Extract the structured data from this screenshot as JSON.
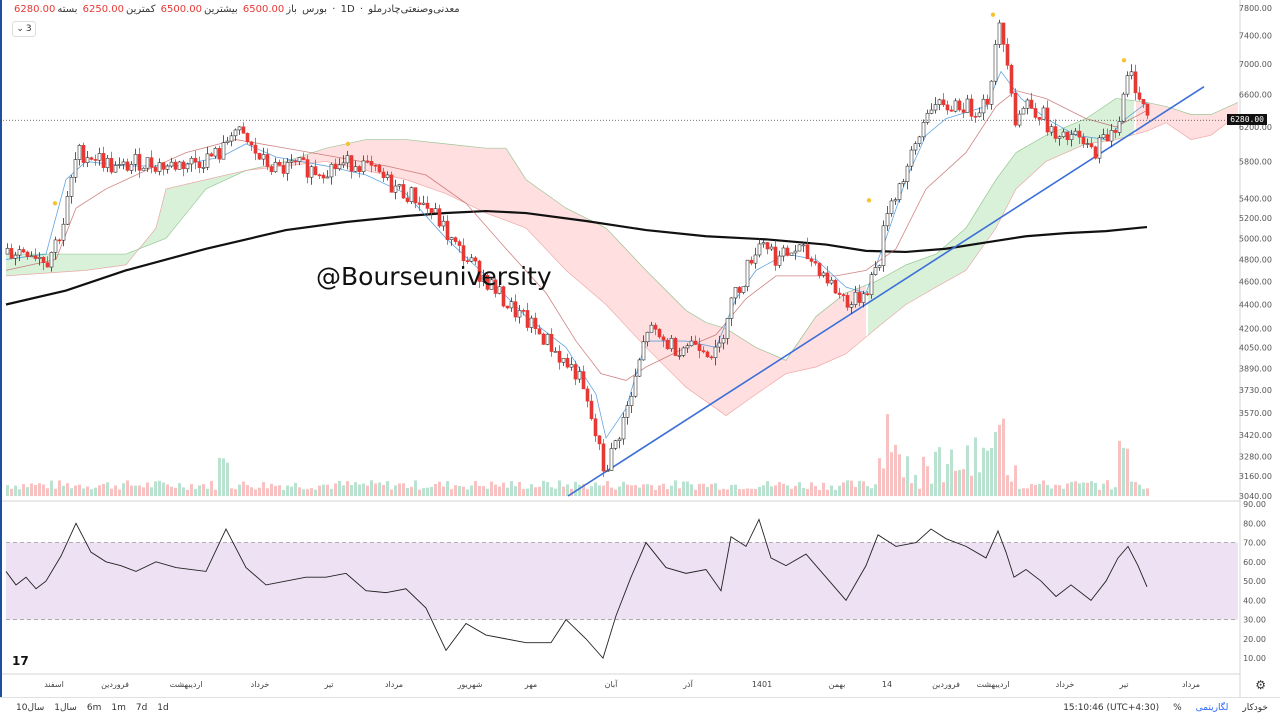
{
  "header": {
    "symbol": "معدنی‌وصنعتی‌چادرملو",
    "interval": "1D",
    "exchange": "بورس",
    "open_label": "باز",
    "open_value": "6500.00",
    "high_label": "بیشترین",
    "high_value": "6500.00",
    "low_label": "کمترین",
    "low_value": "6250.00",
    "close_label": "بسته",
    "close_value": "6280.00",
    "indicator_count": "3"
  },
  "watermark": "@Bourseuniversity",
  "current_price_tag": "6280.00",
  "bottom": {
    "ranges": [
      "10سال",
      "1سال",
      "6m",
      "1m",
      "7d",
      "1d"
    ],
    "time": "15:10:46 (UTC+4:30)",
    "percent": "%",
    "log": "لگاریتمی",
    "auto": "خودکار"
  },
  "colors": {
    "up": "#26a69a",
    "down": "#ef5350",
    "candle_down": "#e53935",
    "baseline": "#2962ff",
    "rsi_band": "#ede1f3"
  },
  "chart_data": [
    {
      "type": "candlestick",
      "title": "",
      "y_scale": "log",
      "ylim": [
        3040,
        7800
      ],
      "y_ticks": [
        7800,
        7400,
        7000,
        6600,
        6280,
        6200,
        5800,
        5400,
        5200,
        5000,
        4800,
        4600,
        4400,
        4200,
        4050,
        3890,
        3730,
        3570,
        3420,
        3280,
        3160,
        3040
      ],
      "y_tick_labels": [
        "7800.00",
        "7400.00",
        "7000.00",
        "6600.00",
        "6280.00",
        "6200.00",
        "5800.00",
        "5400.00",
        "5200.00",
        "5000.00",
        "4800.00",
        "4600.00",
        "4400.00",
        "4200.00",
        "4050.00",
        "3890.00",
        "3730.00",
        "3570.00",
        "3420.00",
        "3280.00",
        "3160.00",
        "3040.00"
      ],
      "x_labels": [
        "اسفند",
        "فروردین",
        "اردیبهشت",
        "خرداد",
        "تیر",
        "مرداد",
        "شهریور",
        "مهر",
        "آبان",
        "آذر",
        "1401",
        "بهمن",
        "14",
        "فروردین",
        "اردیبهشت",
        "خرداد",
        "تیر",
        "مرداد"
      ],
      "price_path": [
        [
          0,
          4850
        ],
        [
          18,
          4900
        ],
        [
          40,
          4800
        ],
        [
          55,
          5100
        ],
        [
          70,
          5900
        ],
        [
          90,
          5850
        ],
        [
          110,
          5700
        ],
        [
          130,
          5800
        ],
        [
          160,
          5750
        ],
        [
          190,
          5800
        ],
        [
          215,
          5900
        ],
        [
          225,
          6200
        ],
        [
          240,
          6000
        ],
        [
          255,
          5800
        ],
        [
          270,
          5700
        ],
        [
          290,
          5750
        ],
        [
          310,
          5700
        ],
        [
          330,
          5750
        ],
        [
          350,
          5800
        ],
        [
          370,
          5650
        ],
        [
          390,
          5500
        ],
        [
          410,
          5400
        ],
        [
          430,
          5200
        ],
        [
          445,
          4950
        ],
        [
          460,
          4800
        ],
        [
          480,
          4600
        ],
        [
          500,
          4400
        ],
        [
          520,
          4250
        ],
        [
          540,
          4100
        ],
        [
          555,
          3950
        ],
        [
          570,
          3850
        ],
        [
          585,
          3500
        ],
        [
          597,
          3180
        ],
        [
          610,
          3400
        ],
        [
          625,
          3700
        ],
        [
          640,
          4200
        ],
        [
          655,
          4100
        ],
        [
          670,
          4050
        ],
        [
          690,
          4100
        ],
        [
          710,
          3980
        ],
        [
          722,
          4400
        ],
        [
          735,
          4600
        ],
        [
          745,
          4850
        ],
        [
          755,
          5000
        ],
        [
          770,
          4800
        ],
        [
          790,
          4900
        ],
        [
          810,
          4750
        ],
        [
          830,
          4500
        ],
        [
          845,
          4400
        ],
        [
          860,
          4550
        ],
        [
          872,
          4800
        ],
        [
          880,
          5300
        ],
        [
          895,
          5600
        ],
        [
          910,
          6000
        ],
        [
          922,
          6500
        ],
        [
          935,
          6400
        ],
        [
          950,
          6500
        ],
        [
          965,
          6400
        ],
        [
          980,
          6550
        ],
        [
          992,
          7500
        ],
        [
          1000,
          7100
        ],
        [
          1008,
          6300
        ],
        [
          1020,
          6500
        ],
        [
          1035,
          6350
        ],
        [
          1050,
          6000
        ],
        [
          1065,
          6100
        ],
        [
          1085,
          5900
        ],
        [
          1100,
          6100
        ],
        [
          1112,
          6300
        ],
        [
          1122,
          6900
        ],
        [
          1132,
          6600
        ],
        [
          1141,
          6280
        ]
      ],
      "tenkan": [
        [
          0,
          4800
        ],
        [
          40,
          4850
        ],
        [
          60,
          5600
        ],
        [
          80,
          5800
        ],
        [
          120,
          5750
        ],
        [
          170,
          5750
        ],
        [
          215,
          5850
        ],
        [
          240,
          6000
        ],
        [
          270,
          5850
        ],
        [
          320,
          5750
        ],
        [
          360,
          5650
        ],
        [
          400,
          5450
        ],
        [
          440,
          5000
        ],
        [
          480,
          4650
        ],
        [
          520,
          4300
        ],
        [
          560,
          4050
        ],
        [
          590,
          3700
        ],
        [
          600,
          3400
        ],
        [
          620,
          3600
        ],
        [
          640,
          4100
        ],
        [
          680,
          4100
        ],
        [
          710,
          4050
        ],
        [
          730,
          4450
        ],
        [
          750,
          4700
        ],
        [
          780,
          4850
        ],
        [
          810,
          4800
        ],
        [
          840,
          4550
        ],
        [
          860,
          4500
        ],
        [
          880,
          5000
        ],
        [
          900,
          5600
        ],
        [
          920,
          6100
        ],
        [
          940,
          6300
        ],
        [
          980,
          6450
        ],
        [
          995,
          6900
        ],
        [
          1015,
          6550
        ],
        [
          1040,
          6300
        ],
        [
          1070,
          6100
        ],
        [
          1100,
          6050
        ],
        [
          1120,
          6300
        ],
        [
          1141,
          6500
        ]
      ],
      "kijun": [
        [
          0,
          4700
        ],
        [
          50,
          4800
        ],
        [
          70,
          5300
        ],
        [
          100,
          5500
        ],
        [
          140,
          5700
        ],
        [
          180,
          5900
        ],
        [
          230,
          6050
        ],
        [
          280,
          5950
        ],
        [
          330,
          5850
        ],
        [
          380,
          5750
        ],
        [
          420,
          5650
        ],
        [
          460,
          5350
        ],
        [
          500,
          4900
        ],
        [
          540,
          4500
        ],
        [
          570,
          4100
        ],
        [
          595,
          3850
        ],
        [
          620,
          3800
        ],
        [
          640,
          3900
        ],
        [
          680,
          4050
        ],
        [
          710,
          4150
        ],
        [
          740,
          4450
        ],
        [
          770,
          4650
        ],
        [
          800,
          4650
        ],
        [
          830,
          4650
        ],
        [
          860,
          4700
        ],
        [
          890,
          4900
        ],
        [
          920,
          5500
        ],
        [
          960,
          5900
        ],
        [
          990,
          6450
        ],
        [
          1010,
          6650
        ],
        [
          1040,
          6550
        ],
        [
          1080,
          6300
        ],
        [
          1110,
          6200
        ],
        [
          1141,
          6400
        ]
      ],
      "ma_long": [
        [
          0,
          4400
        ],
        [
          60,
          4520
        ],
        [
          120,
          4700
        ],
        [
          200,
          4900
        ],
        [
          280,
          5080
        ],
        [
          340,
          5160
        ],
        [
          400,
          5220
        ],
        [
          440,
          5250
        ],
        [
          480,
          5270
        ],
        [
          520,
          5250
        ],
        [
          580,
          5170
        ],
        [
          640,
          5080
        ],
        [
          700,
          5020
        ],
        [
          760,
          4990
        ],
        [
          820,
          4940
        ],
        [
          860,
          4880
        ],
        [
          900,
          4870
        ],
        [
          940,
          4900
        ],
        [
          980,
          4960
        ],
        [
          1020,
          5020
        ],
        [
          1060,
          5050
        ],
        [
          1100,
          5070
        ],
        [
          1141,
          5110
        ]
      ],
      "cloud_upper": [
        [
          0,
          4850
        ],
        [
          80,
          4850
        ],
        [
          120,
          4850
        ],
        [
          160,
          5000
        ],
        [
          200,
          5500
        ],
        [
          240,
          5700
        ],
        [
          280,
          5800
        ],
        [
          320,
          5950
        ],
        [
          360,
          6050
        ],
        [
          400,
          6050
        ],
        [
          440,
          6000
        ],
        [
          480,
          5950
        ],
        [
          500,
          5950
        ],
        [
          520,
          5600
        ],
        [
          560,
          5300
        ],
        [
          600,
          5100
        ],
        [
          640,
          4700
        ],
        [
          680,
          4350
        ],
        [
          700,
          4250
        ],
        [
          720,
          4200
        ],
        [
          750,
          4050
        ],
        [
          780,
          3950
        ],
        [
          810,
          4300
        ],
        [
          840,
          4500
        ],
        [
          870,
          4600
        ],
        [
          900,
          4750
        ],
        [
          930,
          4850
        ],
        [
          960,
          5100
        ],
        [
          990,
          5600
        ],
        [
          1010,
          5900
        ],
        [
          1040,
          6100
        ],
        [
          1080,
          6300
        ],
        [
          1110,
          6550
        ],
        [
          1141,
          6500
        ],
        [
          1160,
          6450
        ],
        [
          1185,
          6350
        ],
        [
          1205,
          6350
        ],
        [
          1232,
          6500
        ]
      ],
      "cloud_lower": [
        [
          0,
          4650
        ],
        [
          80,
          4700
        ],
        [
          120,
          4750
        ],
        [
          150,
          5100
        ],
        [
          160,
          5500
        ],
        [
          200,
          5600
        ],
        [
          240,
          5700
        ],
        [
          280,
          5750
        ],
        [
          320,
          5800
        ],
        [
          360,
          5700
        ],
        [
          400,
          5600
        ],
        [
          440,
          5450
        ],
        [
          480,
          5250
        ],
        [
          520,
          5100
        ],
        [
          560,
          4700
        ],
        [
          600,
          4400
        ],
        [
          640,
          4050
        ],
        [
          680,
          3750
        ],
        [
          700,
          3650
        ],
        [
          720,
          3550
        ],
        [
          750,
          3700
        ],
        [
          780,
          3850
        ],
        [
          810,
          3900
        ],
        [
          840,
          4000
        ],
        [
          870,
          4200
        ],
        [
          900,
          4400
        ],
        [
          930,
          4550
        ],
        [
          960,
          4700
        ],
        [
          990,
          5100
        ],
        [
          1010,
          5500
        ],
        [
          1040,
          5800
        ],
        [
          1080,
          6000
        ],
        [
          1110,
          6050
        ],
        [
          1141,
          6150
        ],
        [
          1160,
          6250
        ],
        [
          1185,
          6050
        ],
        [
          1205,
          6100
        ],
        [
          1232,
          6350
        ]
      ],
      "trendline": [
        [
          562,
          3040
        ],
        [
          1198,
          6700
        ]
      ],
      "volume_x": [
        0,
        1141
      ],
      "rsi": {
        "ylim": [
          0,
          90
        ],
        "y_ticks": [
          10,
          20,
          30,
          40,
          50,
          60,
          70,
          80,
          90
        ],
        "y_tick_labels": [
          "10.00",
          "20.00",
          "30.00",
          "40.00",
          "50.00",
          "60.00",
          "70.00",
          "80.00",
          "90.00"
        ],
        "band": [
          30,
          70
        ],
        "values": [
          [
            0,
            55
          ],
          [
            10,
            48
          ],
          [
            20,
            52
          ],
          [
            30,
            46
          ],
          [
            40,
            50
          ],
          [
            55,
            63
          ],
          [
            70,
            80
          ],
          [
            85,
            65
          ],
          [
            100,
            60
          ],
          [
            115,
            58
          ],
          [
            130,
            55
          ],
          [
            150,
            60
          ],
          [
            170,
            57
          ],
          [
            200,
            55
          ],
          [
            220,
            77
          ],
          [
            240,
            57
          ],
          [
            260,
            48
          ],
          [
            280,
            50
          ],
          [
            300,
            52
          ],
          [
            320,
            52
          ],
          [
            340,
            54
          ],
          [
            360,
            45
          ],
          [
            380,
            44
          ],
          [
            400,
            46
          ],
          [
            420,
            36
          ],
          [
            440,
            14
          ],
          [
            460,
            28
          ],
          [
            480,
            22
          ],
          [
            500,
            20
          ],
          [
            520,
            18
          ],
          [
            545,
            18
          ],
          [
            560,
            30
          ],
          [
            580,
            20
          ],
          [
            597,
            10
          ],
          [
            610,
            32
          ],
          [
            625,
            52
          ],
          [
            640,
            70
          ],
          [
            660,
            57
          ],
          [
            680,
            54
          ],
          [
            700,
            56
          ],
          [
            715,
            45
          ],
          [
            725,
            73
          ],
          [
            740,
            68
          ],
          [
            753,
            82
          ],
          [
            765,
            62
          ],
          [
            780,
            58
          ],
          [
            800,
            64
          ],
          [
            820,
            52
          ],
          [
            840,
            40
          ],
          [
            860,
            58
          ],
          [
            872,
            74
          ],
          [
            890,
            68
          ],
          [
            910,
            70
          ],
          [
            925,
            77
          ],
          [
            940,
            72
          ],
          [
            960,
            68
          ],
          [
            980,
            62
          ],
          [
            992,
            76
          ],
          [
            1000,
            65
          ],
          [
            1008,
            52
          ],
          [
            1020,
            56
          ],
          [
            1035,
            50
          ],
          [
            1050,
            42
          ],
          [
            1065,
            48
          ],
          [
            1085,
            40
          ],
          [
            1100,
            50
          ],
          [
            1112,
            62
          ],
          [
            1122,
            68
          ],
          [
            1132,
            58
          ],
          [
            1141,
            47
          ]
        ]
      }
    }
  ]
}
